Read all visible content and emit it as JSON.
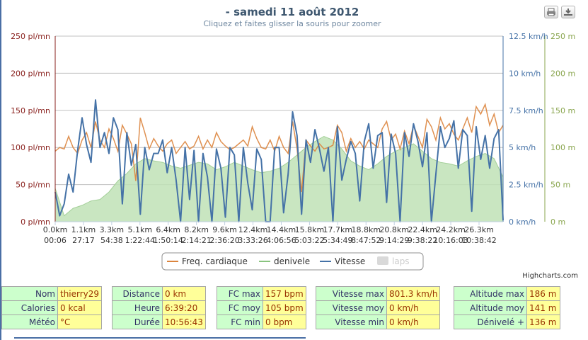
{
  "header": {
    "title": "- samedi 11 août 2012",
    "subtitle": "Cliquez et faites glisser la souris pour zoomer",
    "credits": "Highcharts.com",
    "print_icon": "print-icon",
    "export_icon": "download-icon"
  },
  "chart_data": {
    "type": "line",
    "x_tick_labels": {
      "distance": [
        "0.0km",
        "1.1km",
        "3.3km",
        "5.1km",
        "6.4km",
        "8.2km",
        "9.6km",
        "12.4km",
        "14.4km",
        "15.8km",
        "17.7km",
        "18.8km",
        "20.8km",
        "22.4km",
        "24.2km",
        "26.3km"
      ],
      "time": [
        "00:06",
        "27:17",
        "54:38",
        "1:22:44",
        "1:50:14",
        "2:14:21",
        "2:36:20",
        "3:33:26",
        "4:06:56",
        "5:03:22",
        "5:34:49",
        "8:47:52",
        "9:14:29",
        "9:38:22",
        "10:16:03",
        "10:38:42"
      ]
    },
    "x_range": [
      0,
      100
    ],
    "grid": true,
    "legend_position": "bottom-center",
    "y_axes": [
      {
        "id": "fc",
        "side": "left",
        "min": 0,
        "max": 250,
        "ticks": [
          "0 pl/mn",
          "50 pl/mn",
          "100 pl/mn",
          "150 pl/mn",
          "200 pl/mn",
          "250 pl/mn"
        ],
        "color": "#89211e"
      },
      {
        "id": "speed",
        "side": "right",
        "min": 0,
        "max": 12.5,
        "ticks": [
          "0 km/h",
          "2.5 km/h",
          "5 km/h",
          "7.5 km/h",
          "10 km/h",
          "12.5 km/h"
        ],
        "color": "#4572a7"
      },
      {
        "id": "alt",
        "side": "right",
        "min": 0,
        "max": 250,
        "ticks": [
          "0 m",
          "50 m",
          "100 m",
          "150 m",
          "200 m",
          "250 m"
        ],
        "color": "#89a54e"
      }
    ],
    "series": [
      {
        "name": "denivele",
        "axis": "alt",
        "kind": "area",
        "color": "#c0e2b6",
        "stroke": "#a3cf98",
        "x": [
          0,
          2,
          4,
          6,
          8,
          10,
          12,
          14,
          16,
          18,
          20,
          22,
          24,
          26,
          28,
          30,
          32,
          34,
          36,
          38,
          40,
          42,
          44,
          46,
          48,
          50,
          52,
          54,
          56,
          58,
          60,
          62,
          64,
          66,
          68,
          70,
          72,
          74,
          76,
          78,
          80,
          82,
          84,
          86,
          88,
          90,
          92,
          94,
          96,
          98,
          100
        ],
        "y": [
          45,
          8,
          18,
          22,
          28,
          30,
          40,
          55,
          65,
          78,
          85,
          82,
          80,
          75,
          72,
          76,
          80,
          78,
          70,
          74,
          80,
          75,
          70,
          66,
          68,
          72,
          80,
          90,
          100,
          108,
          115,
          110,
          98,
          82,
          75,
          70,
          78,
          88,
          95,
          100,
          105,
          95,
          85,
          80,
          78,
          75,
          82,
          88,
          92,
          85,
          60
        ]
      },
      {
        "name": "Freq. cardiaque",
        "axis": "fc",
        "kind": "line",
        "color": "#db843d",
        "x": [
          0,
          1,
          2,
          3,
          4,
          5,
          6,
          7,
          8,
          9,
          10,
          11,
          12,
          13,
          14,
          15,
          16,
          17,
          18,
          19,
          20,
          21,
          22,
          23,
          24,
          25,
          26,
          27,
          28,
          29,
          30,
          31,
          32,
          33,
          34,
          35,
          36,
          37,
          38,
          39,
          40,
          41,
          42,
          43,
          44,
          45,
          46,
          47,
          48,
          49,
          50,
          51,
          52,
          53,
          54,
          55,
          56,
          57,
          58,
          59,
          60,
          61,
          62,
          63,
          64,
          65,
          66,
          67,
          68,
          69,
          70,
          71,
          72,
          73,
          74,
          75,
          76,
          77,
          78,
          79,
          80,
          81,
          82,
          83,
          84,
          85,
          86,
          87,
          88,
          89,
          90,
          91,
          92,
          93,
          94,
          95,
          96,
          97,
          98,
          99,
          100
        ],
        "y": [
          95,
          100,
          98,
          115,
          100,
          92,
          110,
          120,
          100,
          135,
          110,
          100,
          125,
          112,
          95,
          130,
          118,
          105,
          55,
          140,
          120,
          98,
          112,
          102,
          95,
          105,
          110,
          92,
          100,
          108,
          98,
          102,
          115,
          98,
          110,
          100,
          120,
          108,
          102,
          97,
          100,
          105,
          110,
          102,
          128,
          112,
          100,
          98,
          110,
          95,
          115,
          100,
          92,
          135,
          98,
          40,
          110,
          102,
          95,
          105,
          98,
          100,
          103,
          130,
          120,
          95,
          112,
          100,
          108,
          98,
          110,
          105,
          100,
          125,
          135,
          110,
          118,
          98,
          122,
          105,
          130,
          115,
          100,
          138,
          128,
          110,
          140,
          125,
          132,
          118,
          110,
          125,
          140,
          120,
          155,
          145,
          158,
          130,
          145,
          120,
          130
        ]
      },
      {
        "name": "Vitesse",
        "axis": "speed",
        "kind": "line",
        "color": "#4572a7",
        "x": [
          0,
          1,
          2,
          3,
          4,
          5,
          6,
          7,
          8,
          9,
          10,
          11,
          12,
          13,
          14,
          15,
          16,
          17,
          18,
          19,
          20,
          21,
          22,
          23,
          24,
          25,
          26,
          27,
          28,
          29,
          30,
          31,
          32,
          33,
          34,
          35,
          36,
          37,
          38,
          39,
          40,
          41,
          42,
          43,
          44,
          45,
          46,
          47,
          48,
          49,
          50,
          51,
          52,
          53,
          54,
          55,
          56,
          57,
          58,
          59,
          60,
          61,
          62,
          63,
          64,
          65,
          66,
          67,
          68,
          69,
          70,
          71,
          72,
          73,
          74,
          75,
          76,
          77,
          78,
          79,
          80,
          81,
          82,
          83,
          84,
          85,
          86,
          87,
          88,
          89,
          90,
          91,
          92,
          93,
          94,
          95,
          96,
          97,
          98,
          99,
          100
        ],
        "y": [
          2.0,
          0.4,
          1.2,
          3.2,
          2.0,
          4.8,
          7.0,
          5.2,
          4.0,
          8.2,
          5.0,
          6.0,
          4.6,
          7.0,
          6.2,
          1.2,
          6.0,
          3.8,
          5.2,
          0.5,
          5.0,
          3.5,
          4.6,
          4.6,
          5.5,
          3.3,
          5.0,
          2.8,
          0.0,
          5.0,
          1.5,
          4.8,
          0.0,
          4.6,
          3.0,
          0.0,
          4.9,
          3.6,
          0.3,
          5.0,
          4.5,
          0.0,
          5.0,
          2.6,
          0.8,
          4.9,
          4.2,
          0.0,
          0.0,
          5.0,
          5.0,
          0.6,
          3.2,
          7.4,
          5.8,
          0.5,
          5.5,
          4.0,
          6.2,
          4.9,
          3.4,
          5.0,
          0.0,
          6.4,
          2.8,
          4.2,
          5.4,
          4.6,
          1.4,
          5.4,
          6.6,
          3.6,
          5.8,
          6.0,
          1.3,
          5.9,
          4.6,
          0.0,
          6.0,
          4.4,
          6.6,
          5.4,
          3.7,
          6.0,
          0.0,
          3.2,
          6.4,
          5.0,
          5.6,
          6.8,
          3.6,
          6.2,
          5.8,
          0.7,
          6.4,
          4.2,
          5.8,
          3.6,
          5.6,
          6.2,
          0.1
        ]
      },
      {
        "name": "laps",
        "kind": "hidden",
        "color": "#cccccc"
      }
    ]
  },
  "stats": {
    "col1": [
      {
        "label": "Nom",
        "value": "thierry29"
      },
      {
        "label": "Calories",
        "value": "0 kcal"
      },
      {
        "label": "Météo",
        "value": "°C"
      }
    ],
    "col2": [
      {
        "label": "Distance",
        "value": "0 km"
      },
      {
        "label": "Heure",
        "value": "6:39:20"
      },
      {
        "label": "Durée",
        "value": "10:56:43"
      }
    ],
    "col3": [
      {
        "label": "FC max",
        "value": "157 bpm"
      },
      {
        "label": "FC moy",
        "value": "105 bpm"
      },
      {
        "label": "FC min",
        "value": "0 bpm"
      }
    ],
    "col4": [
      {
        "label": "Vitesse max",
        "value": "801.3 km/h"
      },
      {
        "label": "Vitesse moy",
        "value": "0 km/h"
      },
      {
        "label": "Vitesse min",
        "value": "0 km/h"
      }
    ],
    "col5": [
      {
        "label": "Altitude max",
        "value": "186 m"
      },
      {
        "label": "Altitude moy",
        "value": "141 m"
      },
      {
        "label": "Dénivelé +",
        "value": "136 m"
      }
    ]
  }
}
